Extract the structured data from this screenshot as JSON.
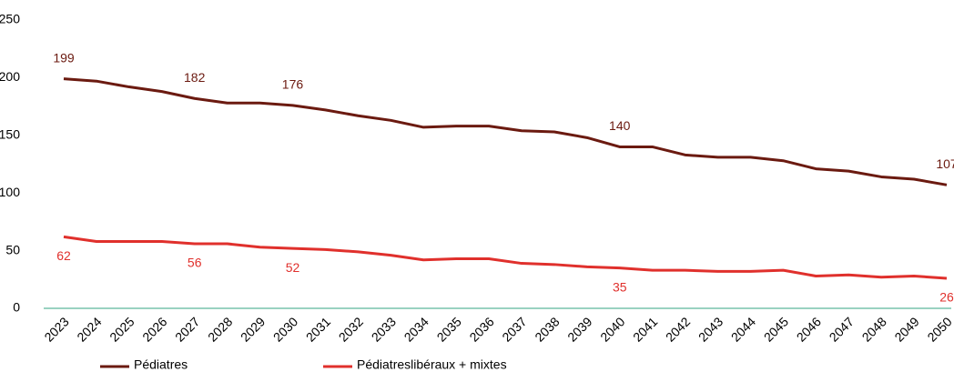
{
  "chart_data": {
    "type": "line",
    "categories": [
      "2023",
      "2024",
      "2025",
      "2026",
      "2027",
      "2028",
      "2029",
      "2030",
      "2031",
      "2032",
      "2033",
      "2034",
      "2035",
      "2036",
      "2037",
      "2038",
      "2039",
      "2040",
      "2041",
      "2042",
      "2043",
      "2044",
      "2045",
      "2046",
      "2047",
      "2048",
      "2049",
      "2050"
    ],
    "series": [
      {
        "name": "Pédiatres",
        "color": "#6b1a10",
        "values": [
          199,
          197,
          192,
          188,
          182,
          178,
          178,
          176,
          172,
          167,
          163,
          157,
          158,
          158,
          154,
          153,
          148,
          140,
          140,
          133,
          131,
          131,
          128,
          121,
          119,
          114,
          112,
          107
        ],
        "value_labels": [
          "199",
          null,
          null,
          null,
          "182",
          null,
          null,
          "176",
          null,
          null,
          null,
          null,
          null,
          null,
          null,
          null,
          null,
          "140",
          null,
          null,
          null,
          null,
          null,
          null,
          null,
          null,
          null,
          "107"
        ]
      },
      {
        "name": "Pédiatreslibéraux + mixtes",
        "color": "#e0302c",
        "values": [
          62,
          58,
          58,
          58,
          56,
          56,
          53,
          52,
          51,
          49,
          46,
          42,
          43,
          43,
          39,
          38,
          36,
          35,
          33,
          33,
          32,
          32,
          33,
          28,
          29,
          27,
          28,
          26
        ],
        "value_labels": [
          "62",
          null,
          null,
          null,
          "56",
          null,
          null,
          "52",
          null,
          null,
          null,
          null,
          null,
          null,
          null,
          null,
          null,
          "35",
          null,
          null,
          null,
          null,
          null,
          null,
          null,
          null,
          null,
          "26"
        ]
      }
    ],
    "ylim": [
      0,
      250
    ],
    "yticks": [
      0,
      50,
      100,
      150,
      200,
      250
    ],
    "grid": false,
    "legend": "bottom"
  }
}
